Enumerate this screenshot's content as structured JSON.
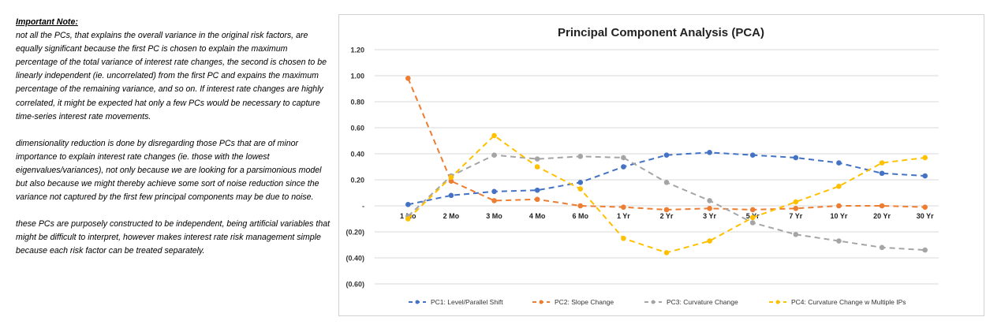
{
  "note": {
    "heading": "Important Note:",
    "paragraphs": [
      "not all the PCs, that explains the overall variance in the original risk factors, are equally significant because the first PC is chosen to explain the maximum percentage of the total variance of interest rate changes, the second is chosen to be linearly independent (ie. uncorrelated) from the first PC and expains the maximum percentage of the remaining variance, and so on. If interest rate changes are highly correlated, it might be expected hat only a few PCs would be necessary to capture time-series interest rate movements.",
      "dimensionality reduction is done by disregarding those PCs that are of minor importance to explain interest rate changes (ie. those with the lowest eigenvalues/variances), not only because we are looking for a parsimonious model but also because we might thereby achieve some sort of noise reduction since the variance not captured by the first few principal components may be due to noise.",
      "these PCs are purposely constructed to be independent, being artificial variables that might be difficult to interpret, however makes interest rate risk management simple because each risk factor can be treated separately."
    ]
  },
  "chart_data": {
    "type": "line",
    "title": "Principal Component Analysis (PCA)",
    "categories": [
      "1 Mo",
      "2 Mo",
      "3 Mo",
      "4 Mo",
      "6 Mo",
      "1 Yr",
      "2 Yr",
      "3 Yr",
      "5 Yr",
      "7 Yr",
      "10 Yr",
      "20 Yr",
      "30 Yr"
    ],
    "ylim": [
      -0.6,
      1.2
    ],
    "yticks": [
      1.2,
      1.0,
      0.8,
      0.6,
      0.4,
      0.2,
      0,
      -0.2,
      -0.4,
      -0.6
    ],
    "ytick_labels": [
      "1.20",
      "1.00",
      "0.80",
      "0.60",
      "0.40",
      "0.20",
      "-",
      "(0.20)",
      "(0.40)",
      "(0.60)"
    ],
    "grid": true,
    "legend": "bottom",
    "series": [
      {
        "name": "PC1: Level/Parallel Shift",
        "color": "#4472C4",
        "values": [
          0.01,
          0.08,
          0.11,
          0.12,
          0.18,
          0.3,
          0.39,
          0.41,
          0.39,
          0.37,
          0.33,
          0.25,
          0.23
        ]
      },
      {
        "name": "PC2: Slope Change",
        "color": "#ED7D31",
        "values": [
          0.98,
          0.19,
          0.04,
          0.05,
          0.0,
          -0.01,
          -0.03,
          -0.02,
          -0.03,
          -0.02,
          0.0,
          0.0,
          -0.01
        ]
      },
      {
        "name": "PC3: Curvature Change",
        "color": "#A5A5A5",
        "values": [
          -0.08,
          0.23,
          0.39,
          0.36,
          0.38,
          0.37,
          0.18,
          0.04,
          -0.13,
          -0.22,
          -0.27,
          -0.32,
          -0.34
        ]
      },
      {
        "name": "PC4: Curvature Change w Multiple IPs",
        "color": "#FFC000",
        "values": [
          -0.1,
          0.22,
          0.54,
          0.3,
          0.13,
          -0.25,
          -0.36,
          -0.27,
          -0.09,
          0.03,
          0.15,
          0.33,
          0.37
        ]
      }
    ]
  }
}
